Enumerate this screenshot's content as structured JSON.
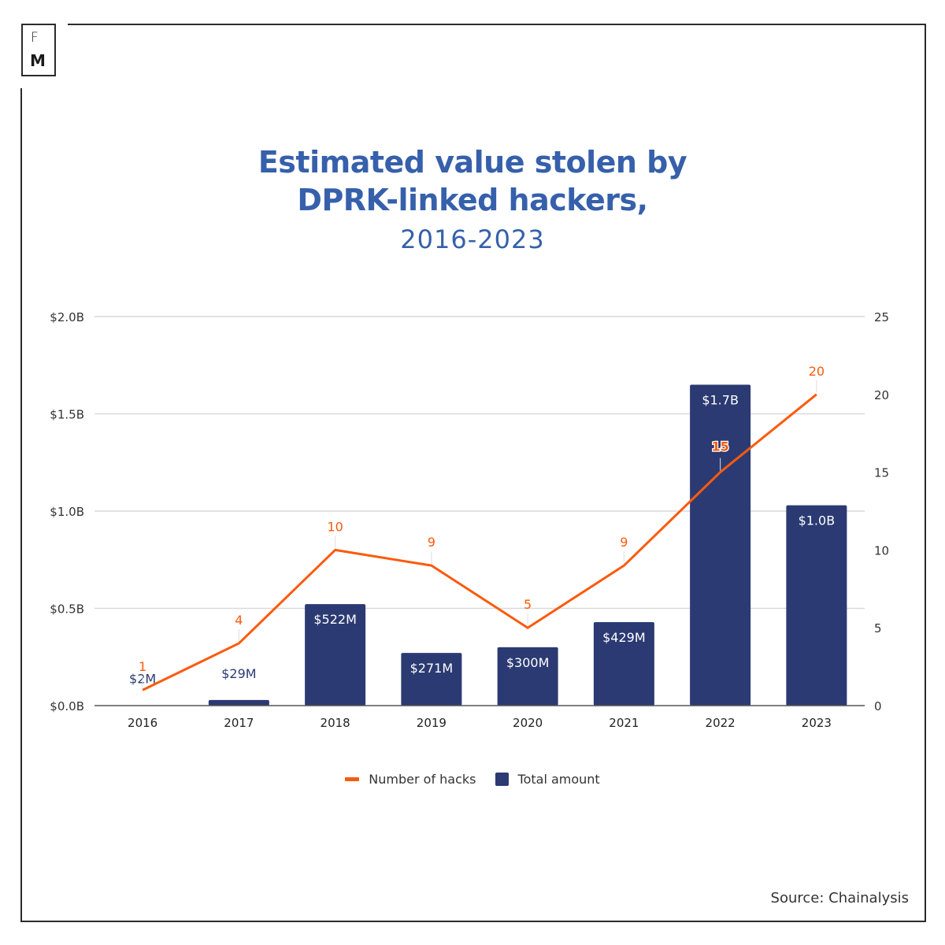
{
  "brand": {
    "logo_top": "F",
    "logo_bottom": "M"
  },
  "title": {
    "line1": "Estimated value stolen by",
    "line2": "DPRK-linked hackers,",
    "line3": "2016-2023"
  },
  "source": "Source: Chainalysis",
  "colors": {
    "title": "#3660ab",
    "bars": "#2b3a72",
    "line": "#fc5a0c",
    "grid": "#d9d9d9",
    "axis": "#555555"
  },
  "chart_data": {
    "type": "bar+line",
    "title": "Estimated value stolen by DPRK-linked hackers, 2016-2023",
    "categories": [
      "2016",
      "2017",
      "2018",
      "2019",
      "2020",
      "2021",
      "2022",
      "2023"
    ],
    "series": [
      {
        "name": "Total amount",
        "type": "bar",
        "axis": "left",
        "values": [
          0.002,
          0.029,
          0.522,
          0.271,
          0.3,
          0.429,
          1.65,
          1.03
        ],
        "labels": [
          "$2M",
          "$29M",
          "$522M",
          "$271M",
          "$300M",
          "$429M",
          "$1.7B",
          "$1.0B"
        ]
      },
      {
        "name": "Number of hacks",
        "type": "line",
        "axis": "right",
        "values": [
          1,
          4,
          10,
          9,
          5,
          9,
          15,
          20
        ],
        "labels": [
          "1",
          "4",
          "10",
          "9",
          "5",
          "9",
          "15",
          "20"
        ]
      }
    ],
    "y_left": {
      "ticks": [
        "$0.0B",
        "$0.5B",
        "$1.0B",
        "$1.5B",
        "$2.0B"
      ],
      "tick_values": [
        0,
        0.5,
        1.0,
        1.5,
        2.0
      ],
      "range": [
        0,
        2.0
      ],
      "unit": "USD billions"
    },
    "y_right": {
      "ticks": [
        "0",
        "5",
        "10",
        "15",
        "20",
        "25"
      ],
      "tick_values": [
        0,
        5,
        10,
        15,
        20,
        25
      ],
      "range": [
        0,
        25
      ]
    },
    "grid": true,
    "legend": {
      "position": "bottom-center",
      "items": [
        {
          "name": "Number of hacks",
          "kind": "line"
        },
        {
          "name": "Total amount",
          "kind": "bar"
        }
      ]
    }
  }
}
